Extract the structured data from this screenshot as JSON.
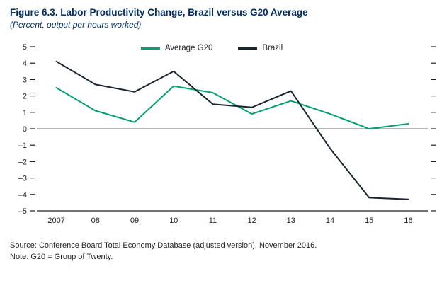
{
  "header": {
    "title": "Figure 6.3. Labor Productivity Change, Brazil versus G20 Average",
    "subtitle": "(Percent, output per hours worked)"
  },
  "footer": {
    "source": "Source: Conference Board Total Economy Database (adjusted version), November 2016.",
    "note": "Note: G20 = Group of Twenty."
  },
  "colors": {
    "title_text": "#002d62",
    "g20_line": "#00a170",
    "brazil_line": "#1b2530",
    "axis": "#231f20",
    "zero_line": "#6d6e71"
  },
  "chart_data": {
    "type": "line",
    "title": "Figure 6.3. Labor Productivity Change, Brazil versus G20 Average",
    "subtitle": "(Percent, output per hours worked)",
    "categories": [
      "2007",
      "08",
      "09",
      "10",
      "11",
      "12",
      "13",
      "14",
      "15",
      "16"
    ],
    "series": [
      {
        "name": "Average G20",
        "color": "#00a170",
        "values": [
          2.5,
          1.1,
          0.4,
          2.6,
          2.2,
          0.9,
          1.7,
          0.9,
          0.0,
          0.3
        ]
      },
      {
        "name": "Brazil",
        "color": "#1b2530",
        "values": [
          4.1,
          2.7,
          2.25,
          3.5,
          1.5,
          1.3,
          2.3,
          -1.2,
          -4.2,
          -4.3
        ]
      }
    ],
    "ylim": [
      -5,
      5
    ],
    "yticks": [
      5,
      4,
      3,
      2,
      1,
      0,
      -1,
      -2,
      -3,
      -4,
      -5
    ],
    "ytick_labels": [
      "5",
      "4",
      "3",
      "2",
      "1",
      "0",
      "–1",
      "–2",
      "–3",
      "–4",
      "–5"
    ],
    "xlabel": "",
    "ylabel": "",
    "grid": false,
    "zero_line": true,
    "legend_position": "top-center"
  }
}
